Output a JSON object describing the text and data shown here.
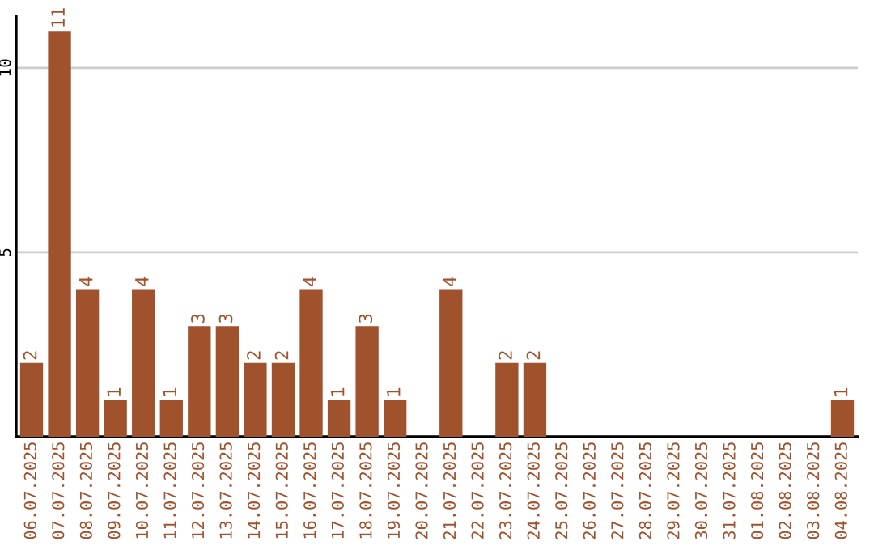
{
  "chart_data": {
    "type": "bar",
    "categories": [
      "06.07.2025",
      "07.07.2025",
      "08.07.2025",
      "09.07.2025",
      "10.07.2025",
      "11.07.2025",
      "12.07.2025",
      "13.07.2025",
      "14.07.2025",
      "15.07.2025",
      "16.07.2025",
      "17.07.2025",
      "18.07.2025",
      "19.07.2025",
      "20.07.2025",
      "21.07.2025",
      "22.07.2025",
      "23.07.2025",
      "24.07.2025",
      "25.07.2025",
      "26.07.2025",
      "27.07.2025",
      "28.07.2025",
      "29.07.2025",
      "30.07.2025",
      "31.07.2025",
      "01.08.2025",
      "02.08.2025",
      "03.08.2025",
      "04.08.2025"
    ],
    "values": [
      2,
      11,
      4,
      1,
      4,
      1,
      3,
      3,
      2,
      2,
      4,
      1,
      3,
      1,
      0,
      4,
      0,
      2,
      2,
      0,
      0,
      0,
      0,
      0,
      0,
      0,
      0,
      0,
      0,
      1
    ],
    "value_labels": [
      "2",
      "11",
      "4",
      "1",
      "4",
      "1",
      "3",
      "3",
      "2",
      "2",
      "4",
      "1",
      "3",
      "1",
      null,
      "4",
      null,
      "2",
      "2",
      null,
      null,
      null,
      null,
      null,
      null,
      null,
      null,
      null,
      null,
      "1"
    ],
    "color": "#a0522d",
    "ylim": [
      0,
      11.4
    ],
    "yticks": [
      {
        "value": 0,
        "label": null
      },
      5,
      10
    ],
    "grid": "y"
  }
}
